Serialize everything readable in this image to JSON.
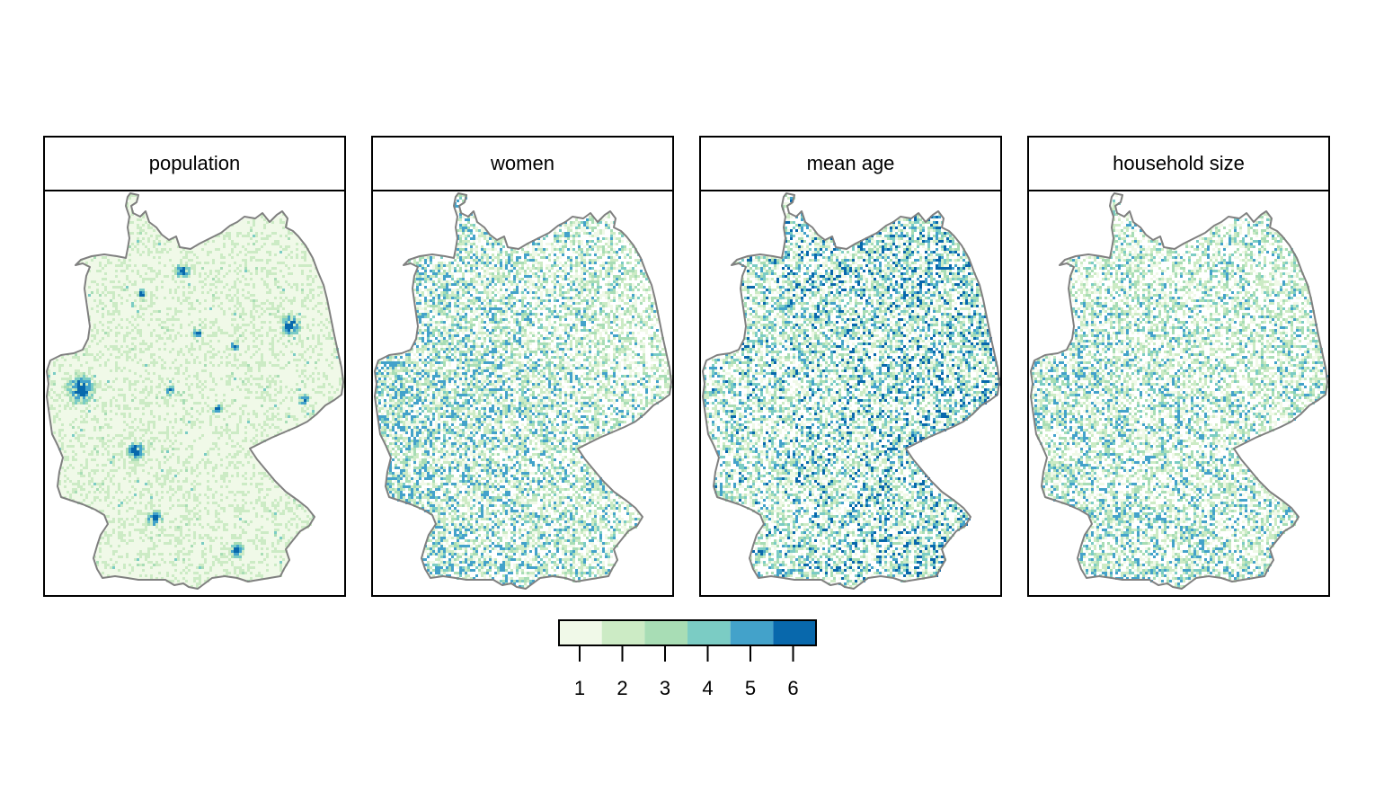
{
  "panels": [
    {
      "title": "population",
      "pattern": "cities"
    },
    {
      "title": "women",
      "pattern": "west-dense"
    },
    {
      "title": "mean age",
      "pattern": "east-high"
    },
    {
      "title": "household size",
      "pattern": "south-high"
    }
  ],
  "legend": {
    "ticks": [
      "1",
      "2",
      "3",
      "4",
      "5",
      "6"
    ],
    "colors": [
      "#f0f9e8",
      "#ccebc5",
      "#a8ddb5",
      "#7bccc4",
      "#43a2ca",
      "#0868ac"
    ]
  },
  "outline_color": "#808080"
}
